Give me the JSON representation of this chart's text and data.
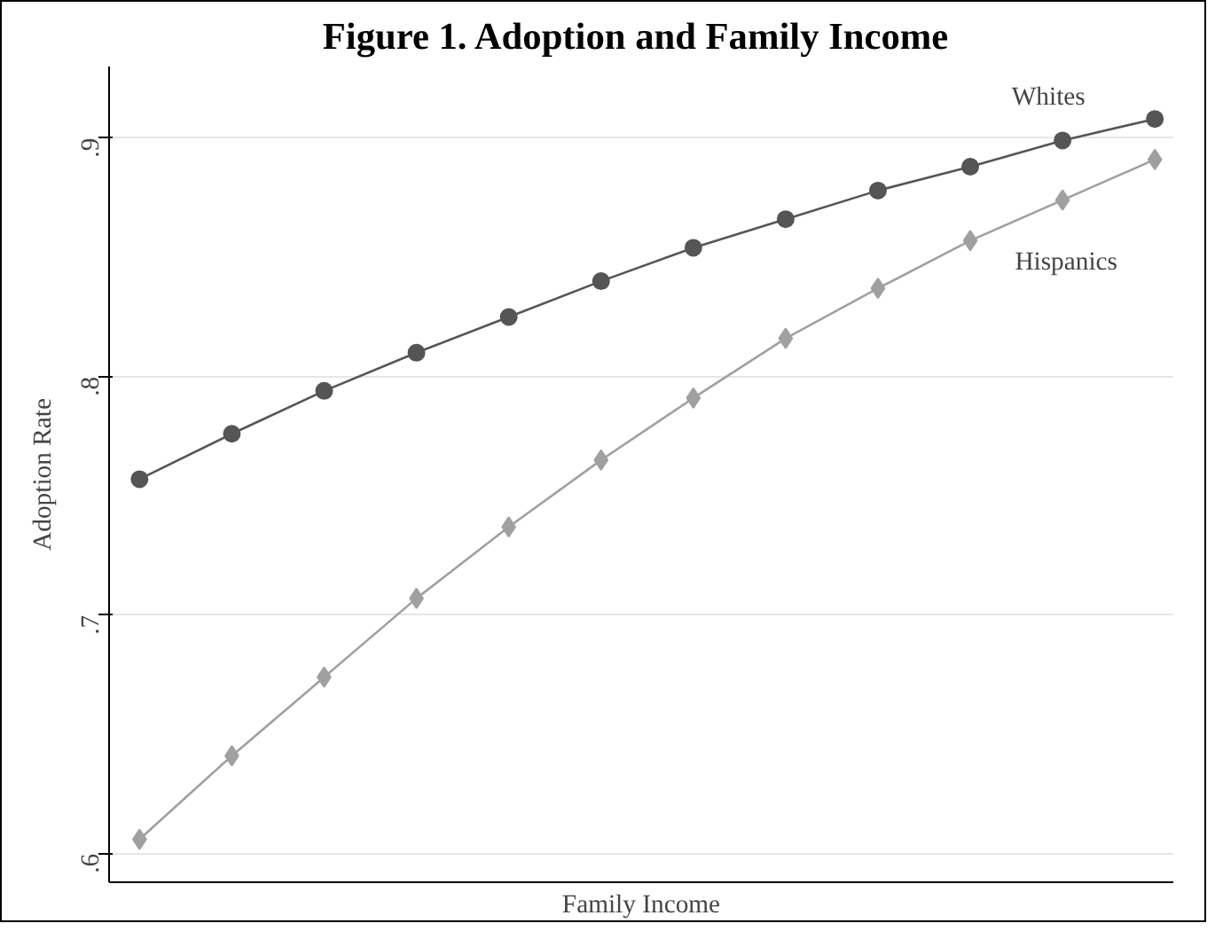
{
  "chart_data": {
    "type": "line",
    "title": "Figure 1.  Adoption and Family Income",
    "xlabel": "Family Income",
    "ylabel": "Adoption Rate",
    "categories": [
      null,
      null,
      null,
      null,
      null,
      null,
      null,
      null,
      null,
      null,
      null,
      null
    ],
    "series": [
      {
        "name": "Whites",
        "color": "#555555",
        "marker": "circle",
        "values": [
          0.757,
          0.776,
          0.794,
          0.81,
          0.825,
          0.84,
          0.854,
          0.866,
          0.878,
          0.888,
          0.899,
          0.908
        ]
      },
      {
        "name": "Hispanics",
        "color": "#a0a0a0",
        "marker": "diamond",
        "values": [
          0.606,
          0.641,
          0.674,
          0.707,
          0.737,
          0.765,
          0.791,
          0.816,
          0.837,
          0.857,
          0.874,
          0.891
        ]
      }
    ],
    "ylim": [
      0.588,
      0.93
    ],
    "yticks": [
      {
        "value": 0.6,
        "label": ".6"
      },
      {
        "value": 0.7,
        "label": ".7"
      },
      {
        "value": 0.8,
        "label": ".8"
      },
      {
        "value": 0.9,
        "label": ".9"
      }
    ],
    "grid": "y",
    "tick_labels": "y"
  }
}
